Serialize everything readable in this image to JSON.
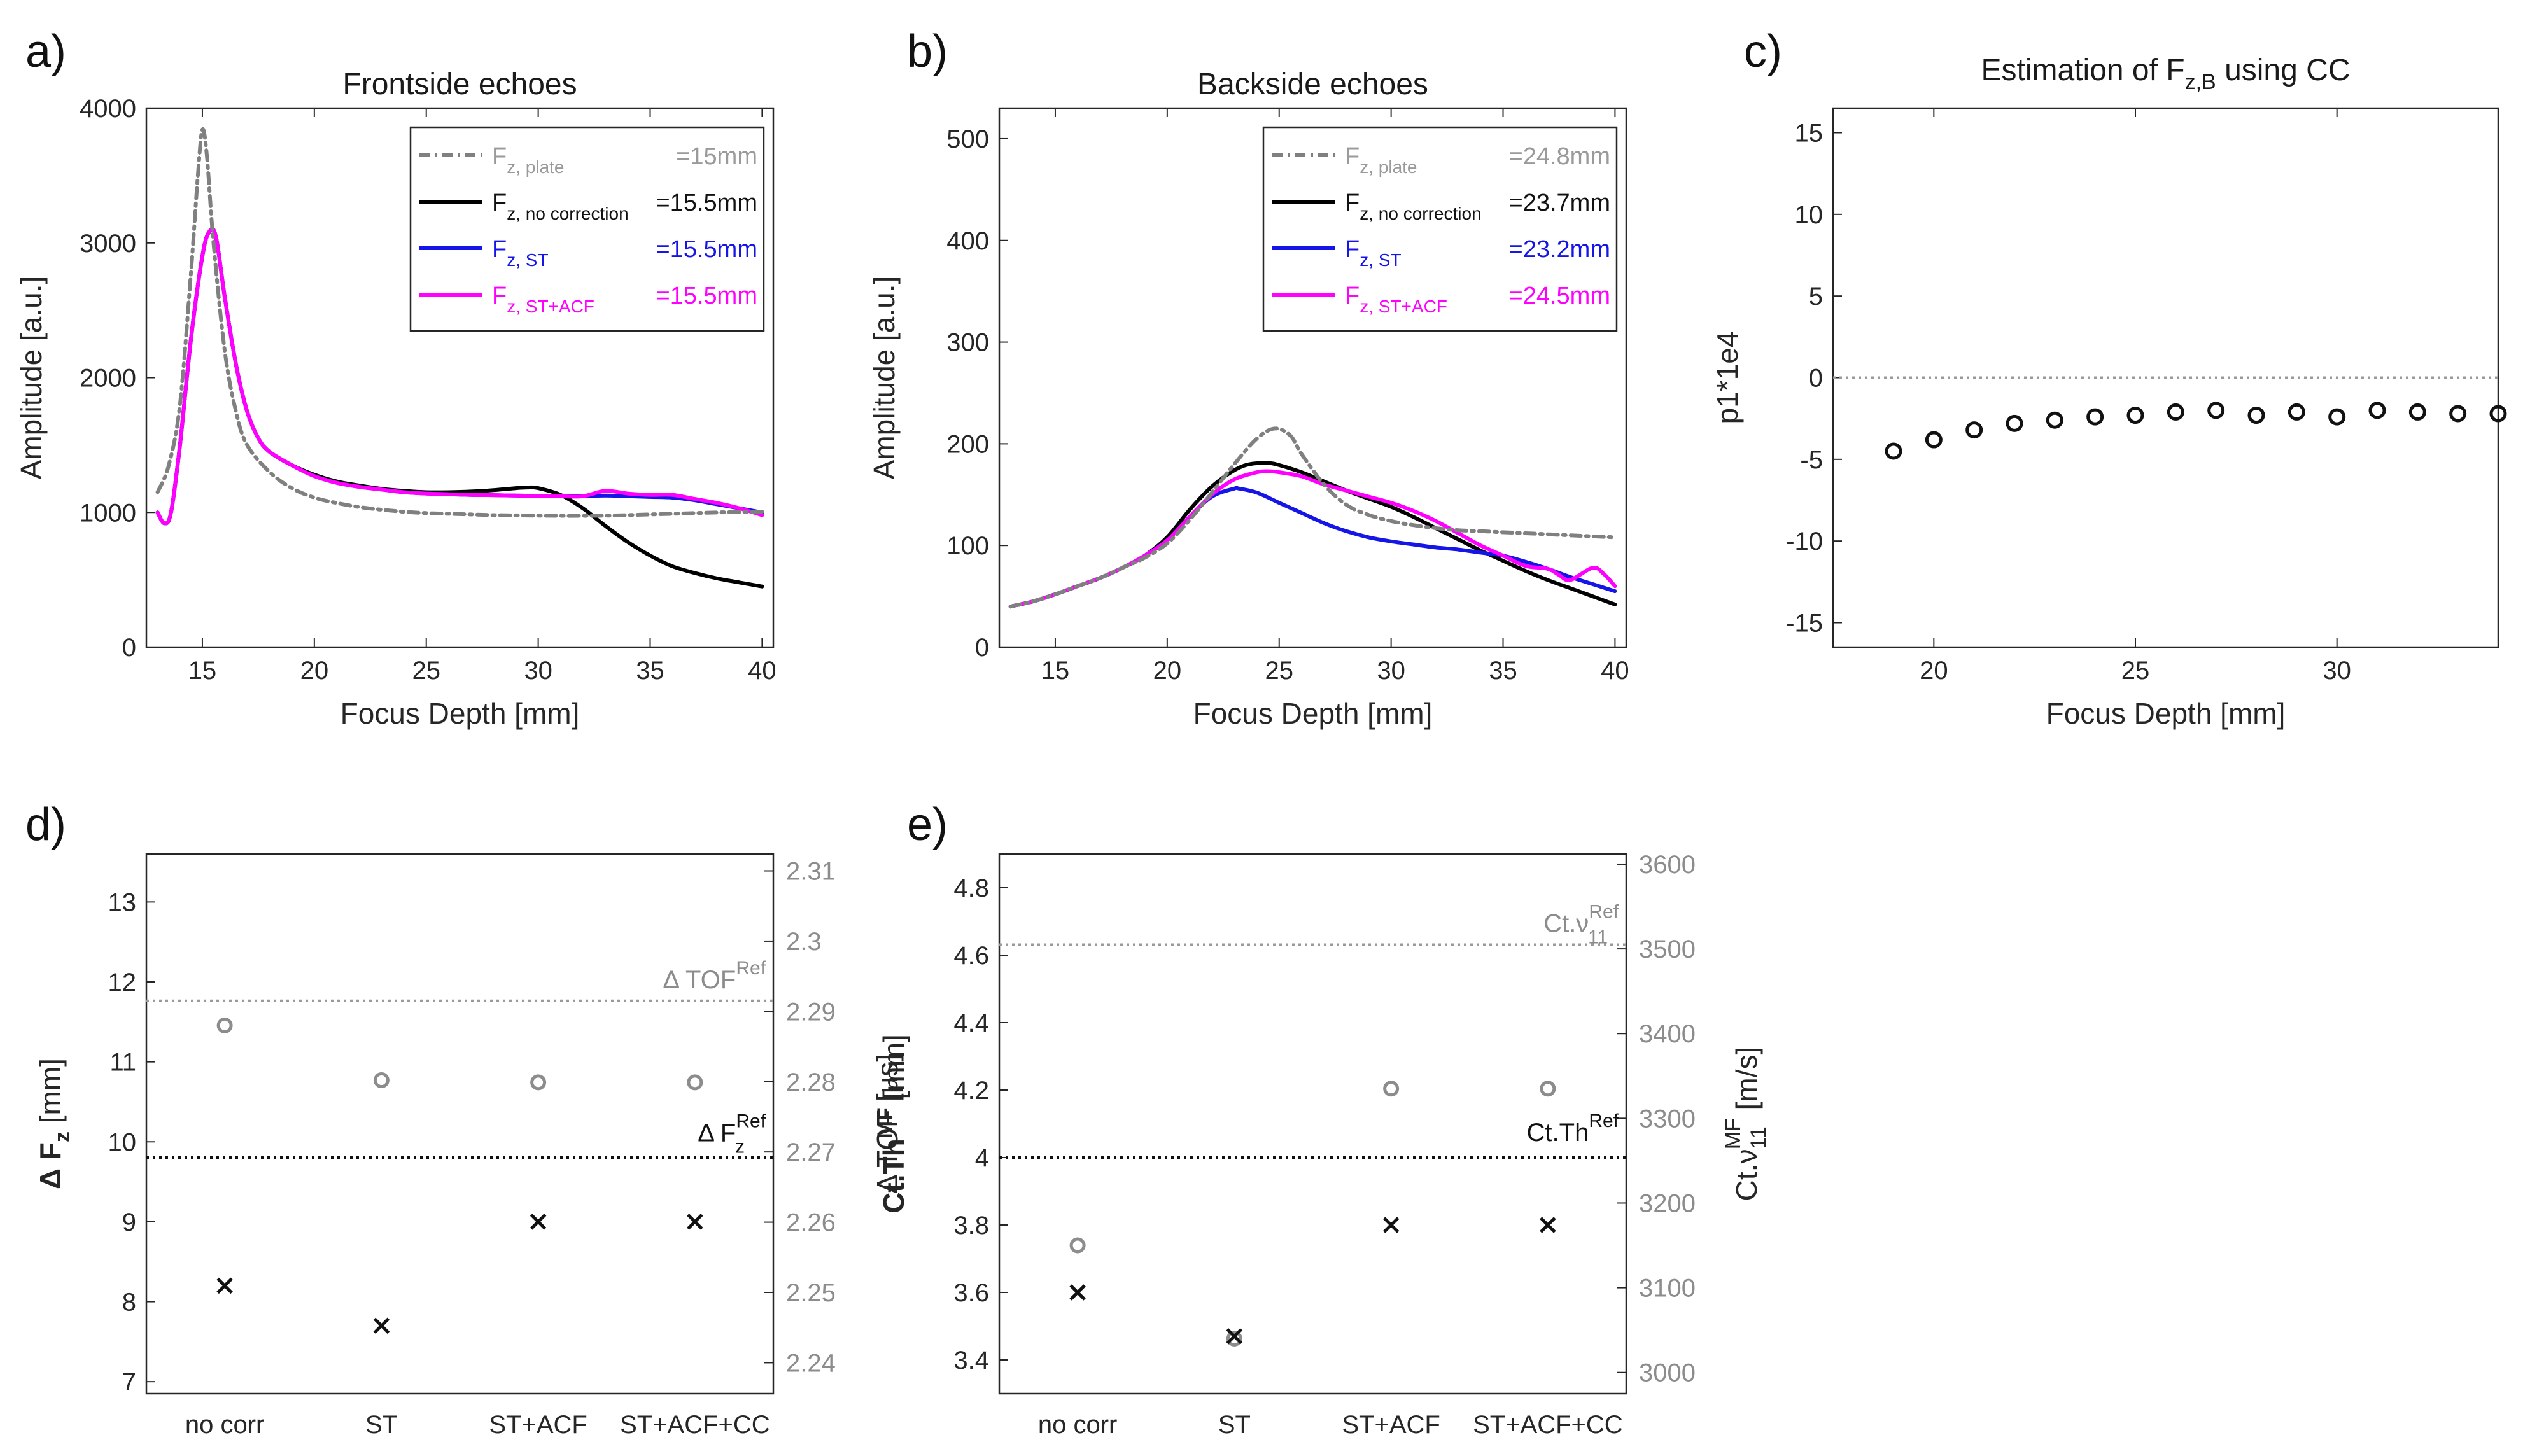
{
  "chart_data": [
    {
      "id": "a",
      "type": "line",
      "panel_label": "a)",
      "title": "Frontside echoes",
      "xlabel": "Focus Depth [mm]",
      "ylabel": "Amplitude [a.u.]",
      "xlim": [
        12.5,
        40.5
      ],
      "ylim": [
        0,
        4000
      ],
      "xticks": [
        15,
        20,
        25,
        30,
        35,
        40
      ],
      "yticks": [
        0,
        1000,
        2000,
        3000,
        4000
      ],
      "series": [
        {
          "name": "plate",
          "label_main": "F",
          "label_sub": "z, plate",
          "label_value": "=15mm",
          "color": "#808080",
          "label_color": "#9a9a9a",
          "dash": "16 8 4 8",
          "x": [
            13,
            13.5,
            14,
            14.5,
            14.8,
            15,
            15.2,
            15.5,
            16,
            16.5,
            17,
            18,
            19,
            20,
            21,
            22,
            23,
            24,
            25,
            26,
            27,
            28,
            29,
            30,
            31,
            32,
            33,
            34,
            35,
            36,
            37,
            38,
            39,
            40
          ],
          "y": [
            1150,
            1350,
            1800,
            2800,
            3500,
            3840,
            3650,
            3000,
            2200,
            1750,
            1500,
            1300,
            1180,
            1110,
            1070,
            1040,
            1020,
            1005,
            995,
            990,
            985,
            980,
            978,
            976,
            975,
            975,
            976,
            980,
            985,
            990,
            995,
            1000,
            1003,
            1005
          ]
        },
        {
          "name": "no correction",
          "label_main": "F",
          "label_sub": "z, no correction",
          "label_value": "=15.5mm",
          "color": "#000000",
          "label_color": "#111111",
          "dash": "",
          "x": [
            13,
            13.3,
            13.6,
            14,
            14.5,
            15,
            15.3,
            15.6,
            16,
            16.5,
            17,
            17.5,
            18,
            19,
            20,
            21,
            22,
            23,
            24,
            25,
            26,
            27,
            28,
            29,
            29.5,
            30,
            31,
            32,
            33,
            34,
            35,
            36,
            37,
            38,
            39,
            40
          ],
          "y": [
            1000,
            920,
            1000,
            1500,
            2300,
            2900,
            3080,
            3050,
            2600,
            2100,
            1750,
            1550,
            1450,
            1350,
            1280,
            1230,
            1200,
            1175,
            1160,
            1150,
            1150,
            1155,
            1165,
            1180,
            1185,
            1180,
            1130,
            1030,
            900,
            780,
            680,
            600,
            550,
            510,
            480,
            450
          ]
        },
        {
          "name": "ST",
          "label_main": "F",
          "label_sub": "z, ST",
          "label_value": "=15.5mm",
          "color": "#1515e8",
          "label_color": "#1515e8",
          "dash": "",
          "x": [
            13,
            13.3,
            13.6,
            14,
            14.5,
            15,
            15.3,
            15.6,
            16,
            16.5,
            17,
            17.5,
            18,
            19,
            20,
            21,
            22,
            23,
            24,
            25,
            26,
            27,
            28,
            29,
            30,
            31,
            32,
            33,
            34,
            35,
            36,
            37,
            38,
            39,
            40
          ],
          "y": [
            1000,
            920,
            1000,
            1500,
            2300,
            2900,
            3080,
            3050,
            2600,
            2100,
            1750,
            1550,
            1450,
            1350,
            1270,
            1220,
            1190,
            1170,
            1150,
            1140,
            1135,
            1130,
            1128,
            1125,
            1122,
            1120,
            1120,
            1125,
            1120,
            1115,
            1110,
            1090,
            1060,
            1030,
            1000
          ]
        },
        {
          "name": "ST+ACF",
          "label_main": "F",
          "label_sub": "z, ST+ACF",
          "label_value": "=15.5mm",
          "color": "#ff00ff",
          "label_color": "#ff00ff",
          "dash": "",
          "x": [
            13,
            13.3,
            13.6,
            14,
            14.5,
            15,
            15.3,
            15.6,
            16,
            16.5,
            17,
            17.5,
            18,
            19,
            20,
            21,
            22,
            23,
            24,
            25,
            26,
            27,
            28,
            29,
            30,
            31,
            32,
            33,
            34,
            35,
            36,
            37,
            38,
            39,
            40
          ],
          "y": [
            1000,
            920,
            1000,
            1500,
            2300,
            2900,
            3080,
            3050,
            2600,
            2100,
            1750,
            1550,
            1450,
            1350,
            1270,
            1220,
            1190,
            1170,
            1150,
            1140,
            1135,
            1130,
            1128,
            1125,
            1122,
            1120,
            1120,
            1160,
            1140,
            1130,
            1130,
            1100,
            1070,
            1030,
            980
          ]
        }
      ]
    },
    {
      "id": "b",
      "type": "line",
      "panel_label": "b)",
      "title": "Backside echoes",
      "xlabel": "Focus Depth [mm]",
      "ylabel": "Amplitude [a.u.]",
      "xlim": [
        12.5,
        40.5
      ],
      "ylim": [
        0,
        530
      ],
      "xticks": [
        15,
        20,
        25,
        30,
        35,
        40
      ],
      "yticks": [
        0,
        100,
        200,
        300,
        400,
        500
      ],
      "series": [
        {
          "name": "plate",
          "label_main": "F",
          "label_sub": "z, plate",
          "label_value": "=24.8mm",
          "color": "#808080",
          "label_color": "#9a9a9a",
          "dash": "16 8 4 8",
          "x": [
            13,
            14,
            15,
            16,
            17,
            18,
            19,
            20,
            21,
            22,
            23,
            24,
            24.8,
            25.5,
            26,
            27,
            28,
            29,
            30,
            31,
            32,
            33,
            34,
            35,
            36,
            37,
            38,
            39,
            40
          ],
          "y": [
            40,
            45,
            52,
            60,
            68,
            78,
            88,
            102,
            125,
            152,
            180,
            205,
            215,
            208,
            190,
            160,
            140,
            130,
            124,
            120,
            117,
            115,
            114,
            113,
            112,
            111,
            110,
            109,
            108
          ]
        },
        {
          "name": "no correction",
          "label_main": "F",
          "label_sub": "z, no correction",
          "label_value": "=23.7mm",
          "color": "#000000",
          "label_color": "#111111",
          "dash": "",
          "x": [
            13,
            14,
            15,
            16,
            17,
            18,
            19,
            20,
            21,
            22,
            23,
            23.7,
            24.5,
            25,
            26,
            27,
            28,
            29,
            30,
            31,
            32,
            33,
            34,
            35,
            36,
            37,
            38,
            39,
            40
          ],
          "y": [
            40,
            45,
            52,
            60,
            68,
            78,
            90,
            108,
            135,
            158,
            174,
            180,
            181,
            179,
            172,
            163,
            154,
            146,
            138,
            128,
            117,
            106,
            95,
            85,
            75,
            66,
            58,
            50,
            42
          ]
        },
        {
          "name": "ST",
          "label_main": "F",
          "label_sub": "z, ST",
          "label_value": "=23.2mm",
          "color": "#1515e8",
          "label_color": "#1515e8",
          "dash": "",
          "x": [
            13,
            14,
            15,
            16,
            17,
            18,
            19,
            20,
            21,
            22,
            23,
            23.2,
            24,
            25,
            26,
            27,
            28,
            29,
            30,
            31,
            32,
            33,
            34,
            35,
            36,
            37,
            38,
            39,
            40
          ],
          "y": [
            40,
            45,
            52,
            60,
            68,
            78,
            90,
            105,
            128,
            148,
            156,
            156,
            152,
            142,
            132,
            122,
            114,
            108,
            104,
            101,
            98,
            96,
            93,
            90,
            84,
            77,
            69,
            62,
            55
          ]
        },
        {
          "name": "ST+ACF",
          "label_main": "F",
          "label_sub": "z, ST+ACF",
          "label_value": "=24.5mm",
          "color": "#ff00ff",
          "label_color": "#ff00ff",
          "dash": "",
          "x": [
            13,
            14,
            15,
            16,
            17,
            18,
            19,
            20,
            21,
            22,
            23,
            24,
            24.5,
            25,
            26,
            27,
            28,
            29,
            30,
            31,
            32,
            33,
            34,
            35,
            36,
            37,
            37.5,
            38,
            39,
            39.5,
            40
          ],
          "y": [
            40,
            45,
            52,
            60,
            68,
            78,
            90,
            105,
            128,
            150,
            165,
            172,
            173,
            172,
            168,
            160,
            154,
            148,
            142,
            134,
            124,
            112,
            100,
            90,
            80,
            77,
            71,
            66,
            78,
            72,
            60
          ]
        }
      ]
    },
    {
      "id": "c",
      "type": "scatter",
      "panel_label": "c)",
      "title_main": "Estimation of F",
      "title_sub": "z,B",
      "title_end": " using CC",
      "xlabel": "Focus Depth [mm]",
      "ylabel": "p1*1e4",
      "xlim": [
        17.5,
        34
      ],
      "ylim": [
        -16.5,
        16.5
      ],
      "xticks": [
        20,
        25,
        30
      ],
      "yticks": [
        -15,
        -10,
        -5,
        0,
        5,
        10,
        15
      ],
      "reference_line": 0,
      "x": [
        19,
        20,
        21,
        22,
        23,
        24,
        25,
        26,
        27,
        28,
        29,
        30,
        31,
        32,
        33,
        34
      ],
      "y": [
        -4.5,
        -3.8,
        -3.2,
        -2.8,
        -2.6,
        -2.4,
        -2.3,
        -2.1,
        -2.0,
        -2.3,
        -2.1,
        -2.4,
        -2.0,
        -2.1,
        -2.2,
        -2.2
      ]
    },
    {
      "id": "d",
      "type": "scatter",
      "panel_label": "d)",
      "categories": [
        "no corr",
        "ST",
        "ST+ACF",
        "ST+ACF+CC"
      ],
      "left_axis": {
        "label_main": "Δ F",
        "label_sub": "z",
        "label_end": " [mm]",
        "ylim": [
          6.85,
          13.6
        ],
        "yticks": [
          7,
          8,
          9,
          10,
          11,
          12,
          13
        ],
        "values": [
          8.2,
          7.7,
          9.0,
          9.0
        ],
        "marker": "x",
        "reference": 9.8,
        "reference_label": "Δ F",
        "reference_label_sub": "z",
        "reference_label_sup": "Ref"
      },
      "right_axis": {
        "label": "Δ TOF [μs]",
        "ylim": [
          2.2356,
          2.3124
        ],
        "yticks": [
          2.24,
          2.25,
          2.26,
          2.27,
          2.28,
          2.29,
          2.3,
          2.31
        ],
        "values": [
          2.288,
          2.2802,
          2.2799,
          2.2799
        ],
        "marker": "o",
        "reference": 2.2915,
        "reference_label": "Δ TOF",
        "reference_label_sup": "Ref"
      }
    },
    {
      "id": "e",
      "type": "scatter",
      "panel_label": "e)",
      "categories": [
        "no corr",
        "ST",
        "ST+ACF",
        "ST+ACF+CC"
      ],
      "left_axis": {
        "label_main": "Ct.Th",
        "label_sup": "MF",
        "label_end": " [mm]",
        "ylim": [
          3.3,
          4.9
        ],
        "yticks": [
          3.4,
          3.6,
          3.8,
          4,
          4.2,
          4.4,
          4.6,
          4.8
        ],
        "values": [
          3.6,
          3.47,
          3.8,
          3.8
        ],
        "marker": "x",
        "reference": 4.0,
        "reference_label": "Ct.Th",
        "reference_label_sup": "Ref"
      },
      "right_axis": {
        "label_main": "Ct.ν",
        "label_sub": "11",
        "label_sup": "MF",
        "label_end": " [m/s]",
        "ylim": [
          2975,
          3612
        ],
        "yticks": [
          3000,
          3100,
          3200,
          3300,
          3400,
          3500,
          3600
        ],
        "values": [
          3150,
          3040,
          3335,
          3335
        ],
        "marker": "o",
        "reference": 3505,
        "reference_label": "Ct.ν",
        "reference_label_sub": "11",
        "reference_label_sup": "Ref"
      }
    }
  ]
}
